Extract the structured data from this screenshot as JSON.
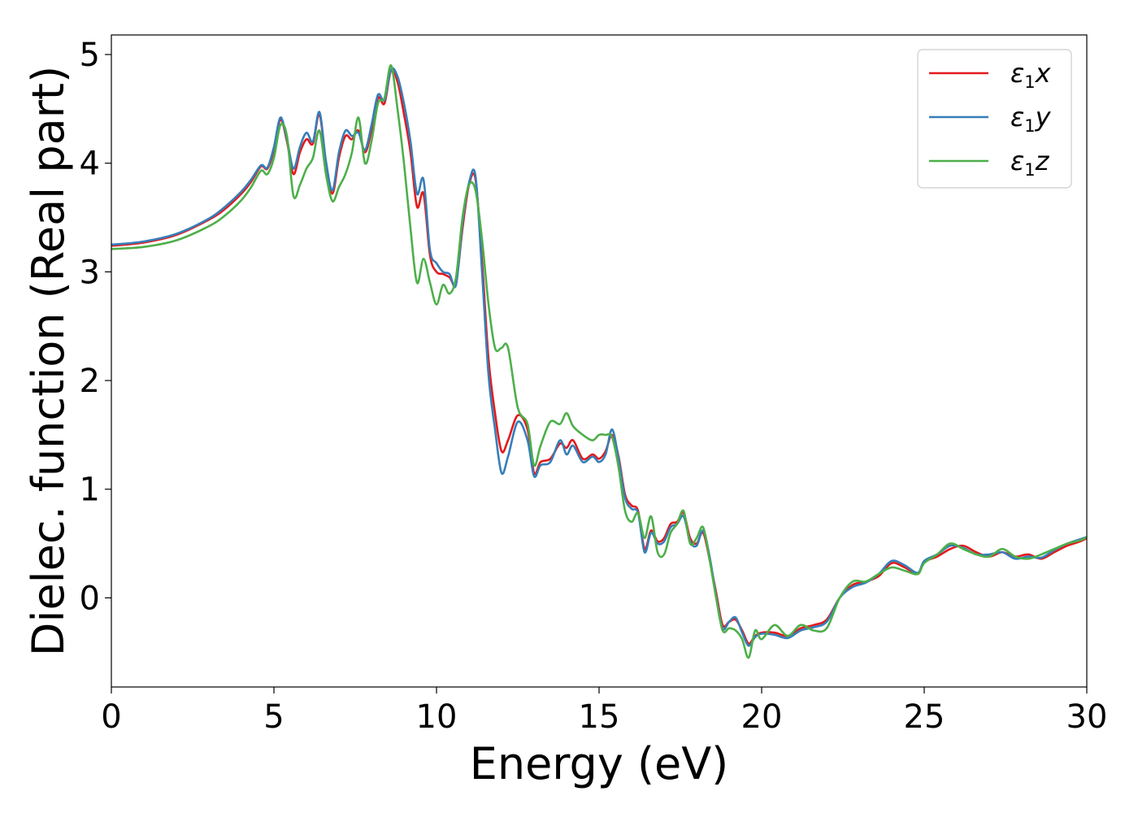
{
  "chart_data": {
    "type": "line",
    "title": "",
    "xlabel": "Energy (eV)",
    "ylabel": "Dielec. function (Real part)",
    "xlim": [
      0,
      30
    ],
    "ylim": [
      -0.82,
      5.18
    ],
    "xticks": [
      "0",
      "5",
      "10",
      "15",
      "20",
      "25",
      "30"
    ],
    "yticks": [
      "0",
      "1",
      "2",
      "3",
      "4",
      "5"
    ],
    "grid": false,
    "legend_position": "top-right",
    "series": [
      {
        "name": "ε1x",
        "name_base": "ε",
        "name_sub": "1",
        "name_tail": "x",
        "color": "#e41a1c",
        "x": [
          0,
          1,
          2,
          3,
          3.5,
          4,
          4.3,
          4.6,
          4.8,
          5.0,
          5.2,
          5.4,
          5.6,
          5.8,
          6.0,
          6.2,
          6.4,
          6.6,
          6.8,
          7.0,
          7.2,
          7.4,
          7.6,
          7.8,
          8.0,
          8.2,
          8.4,
          8.6,
          8.8,
          9.0,
          9.2,
          9.4,
          9.6,
          9.8,
          10.0,
          10.2,
          10.4,
          10.6,
          10.8,
          11.0,
          11.2,
          11.4,
          11.6,
          11.8,
          12.0,
          12.2,
          12.5,
          12.8,
          13.0,
          13.2,
          13.5,
          13.8,
          14.0,
          14.2,
          14.5,
          14.8,
          15.0,
          15.2,
          15.4,
          15.6,
          15.8,
          16.0,
          16.2,
          16.4,
          16.6,
          16.8,
          17.0,
          17.2,
          17.4,
          17.6,
          17.8,
          18.0,
          18.2,
          18.4,
          18.6,
          18.8,
          19.0,
          19.2,
          19.4,
          19.6,
          19.8,
          20.0,
          20.4,
          20.8,
          21.2,
          21.6,
          22.0,
          22.4,
          22.8,
          23.2,
          23.6,
          24.0,
          24.4,
          24.8,
          25.0,
          25.4,
          25.8,
          26.2,
          26.6,
          27.0,
          27.4,
          27.8,
          28.2,
          28.6,
          29.0,
          29.4,
          29.8,
          30
        ],
        "y": [
          3.24,
          3.27,
          3.34,
          3.48,
          3.58,
          3.72,
          3.83,
          3.97,
          3.95,
          4.12,
          4.4,
          4.2,
          3.9,
          4.1,
          4.22,
          4.18,
          4.45,
          4.0,
          3.72,
          4.05,
          4.25,
          4.22,
          4.3,
          4.1,
          4.3,
          4.6,
          4.55,
          4.85,
          4.75,
          4.45,
          4.1,
          3.6,
          3.72,
          3.15,
          3.0,
          2.98,
          2.95,
          2.9,
          3.4,
          3.8,
          3.85,
          3.1,
          2.2,
          1.7,
          1.35,
          1.45,
          1.68,
          1.55,
          1.15,
          1.25,
          1.28,
          1.42,
          1.38,
          1.45,
          1.28,
          1.32,
          1.28,
          1.35,
          1.5,
          1.3,
          0.95,
          0.85,
          0.8,
          0.45,
          0.62,
          0.52,
          0.55,
          0.68,
          0.7,
          0.78,
          0.55,
          0.5,
          0.6,
          0.35,
          0.05,
          -0.25,
          -0.22,
          -0.2,
          -0.3,
          -0.42,
          -0.35,
          -0.32,
          -0.32,
          -0.35,
          -0.28,
          -0.25,
          -0.2,
          0.0,
          0.12,
          0.15,
          0.2,
          0.32,
          0.28,
          0.22,
          0.33,
          0.38,
          0.45,
          0.48,
          0.42,
          0.38,
          0.42,
          0.38,
          0.4,
          0.36,
          0.42,
          0.48,
          0.52,
          0.55
        ]
      },
      {
        "name": "ε1y",
        "name_base": "ε",
        "name_sub": "1",
        "name_tail": "y",
        "color": "#377eb8",
        "x": [
          0,
          1,
          2,
          3,
          3.5,
          4,
          4.3,
          4.6,
          4.8,
          5.0,
          5.2,
          5.4,
          5.6,
          5.8,
          6.0,
          6.2,
          6.4,
          6.6,
          6.8,
          7.0,
          7.2,
          7.4,
          7.6,
          7.8,
          8.0,
          8.2,
          8.4,
          8.6,
          8.8,
          9.0,
          9.2,
          9.4,
          9.6,
          9.8,
          10.0,
          10.2,
          10.4,
          10.6,
          10.8,
          11.0,
          11.2,
          11.4,
          11.6,
          11.8,
          12.0,
          12.2,
          12.5,
          12.8,
          13.0,
          13.2,
          13.5,
          13.8,
          14.0,
          14.2,
          14.5,
          14.8,
          15.0,
          15.2,
          15.4,
          15.6,
          15.8,
          16.0,
          16.2,
          16.4,
          16.6,
          16.8,
          17.0,
          17.2,
          17.4,
          17.6,
          17.8,
          18.0,
          18.2,
          18.4,
          18.6,
          18.8,
          19.0,
          19.2,
          19.4,
          19.6,
          19.8,
          20.0,
          20.4,
          20.8,
          21.2,
          21.6,
          22.0,
          22.4,
          22.8,
          23.2,
          23.6,
          24.0,
          24.4,
          24.8,
          25.0,
          25.4,
          25.8,
          26.2,
          26.6,
          27.0,
          27.4,
          27.8,
          28.2,
          28.6,
          29.0,
          29.4,
          29.8,
          30
        ],
        "y": [
          3.25,
          3.28,
          3.35,
          3.49,
          3.6,
          3.74,
          3.85,
          3.98,
          3.96,
          4.15,
          4.42,
          4.22,
          3.95,
          4.15,
          4.28,
          4.2,
          4.47,
          4.02,
          3.75,
          4.1,
          4.3,
          4.25,
          4.28,
          4.12,
          4.35,
          4.63,
          4.58,
          4.86,
          4.8,
          4.55,
          4.2,
          3.72,
          3.85,
          3.2,
          3.08,
          3.0,
          2.98,
          2.88,
          3.45,
          3.82,
          3.88,
          3.0,
          2.05,
          1.55,
          1.15,
          1.3,
          1.62,
          1.45,
          1.12,
          1.22,
          1.25,
          1.45,
          1.32,
          1.4,
          1.25,
          1.3,
          1.25,
          1.32,
          1.55,
          1.28,
          0.92,
          0.82,
          0.78,
          0.42,
          0.6,
          0.5,
          0.52,
          0.65,
          0.68,
          0.75,
          0.52,
          0.48,
          0.62,
          0.38,
          0.02,
          -0.28,
          -0.22,
          -0.18,
          -0.32,
          -0.44,
          -0.36,
          -0.33,
          -0.34,
          -0.37,
          -0.3,
          -0.27,
          -0.22,
          0.0,
          0.1,
          0.14,
          0.22,
          0.34,
          0.3,
          0.23,
          0.34,
          0.4,
          0.48,
          0.46,
          0.4,
          0.4,
          0.42,
          0.36,
          0.38,
          0.37,
          0.44,
          0.5,
          0.54,
          0.56
        ]
      },
      {
        "name": "ε1z",
        "name_base": "ε",
        "name_sub": "1",
        "name_tail": "z",
        "color": "#4daf4a",
        "x": [
          0,
          1,
          2,
          3,
          3.5,
          4,
          4.3,
          4.6,
          4.8,
          5.0,
          5.2,
          5.4,
          5.6,
          5.8,
          6.0,
          6.2,
          6.4,
          6.6,
          6.8,
          7.0,
          7.2,
          7.4,
          7.6,
          7.8,
          8.0,
          8.2,
          8.4,
          8.6,
          8.8,
          9.0,
          9.2,
          9.4,
          9.6,
          9.8,
          10.0,
          10.2,
          10.4,
          10.6,
          10.8,
          11.0,
          11.2,
          11.4,
          11.6,
          11.8,
          12.0,
          12.2,
          12.5,
          12.8,
          13.0,
          13.2,
          13.5,
          13.8,
          14.0,
          14.2,
          14.5,
          14.8,
          15.0,
          15.2,
          15.4,
          15.6,
          15.8,
          16.0,
          16.2,
          16.4,
          16.6,
          16.8,
          17.0,
          17.2,
          17.4,
          17.6,
          17.8,
          18.0,
          18.2,
          18.4,
          18.6,
          18.8,
          19.0,
          19.2,
          19.4,
          19.6,
          19.8,
          20.0,
          20.4,
          20.8,
          21.2,
          21.6,
          22.0,
          22.4,
          22.8,
          23.2,
          23.6,
          24.0,
          24.4,
          24.8,
          25.0,
          25.4,
          25.8,
          26.2,
          26.6,
          27.0,
          27.4,
          27.8,
          28.2,
          28.6,
          29.0,
          29.4,
          29.8,
          30
        ],
        "y": [
          3.21,
          3.23,
          3.29,
          3.42,
          3.52,
          3.66,
          3.78,
          3.93,
          3.9,
          4.05,
          4.35,
          4.25,
          3.7,
          3.8,
          3.95,
          4.05,
          4.3,
          3.9,
          3.65,
          3.78,
          3.9,
          4.1,
          4.42,
          4.0,
          4.2,
          4.55,
          4.6,
          4.9,
          4.5,
          4.0,
          3.4,
          2.9,
          3.12,
          2.9,
          2.7,
          2.88,
          2.8,
          2.95,
          3.5,
          3.8,
          3.75,
          3.3,
          2.7,
          2.3,
          2.3,
          2.3,
          1.75,
          1.6,
          1.22,
          1.4,
          1.62,
          1.6,
          1.7,
          1.58,
          1.5,
          1.45,
          1.5,
          1.5,
          1.48,
          1.2,
          0.8,
          0.7,
          0.78,
          0.55,
          0.75,
          0.42,
          0.4,
          0.6,
          0.68,
          0.8,
          0.5,
          0.55,
          0.65,
          0.35,
          0.0,
          -0.3,
          -0.28,
          -0.3,
          -0.38,
          -0.55,
          -0.3,
          -0.38,
          -0.25,
          -0.35,
          -0.25,
          -0.3,
          -0.28,
          0.0,
          0.15,
          0.15,
          0.22,
          0.28,
          0.25,
          0.22,
          0.32,
          0.4,
          0.5,
          0.45,
          0.4,
          0.38,
          0.45,
          0.38,
          0.36,
          0.4,
          0.45,
          0.5,
          0.53,
          0.56
        ]
      }
    ]
  }
}
